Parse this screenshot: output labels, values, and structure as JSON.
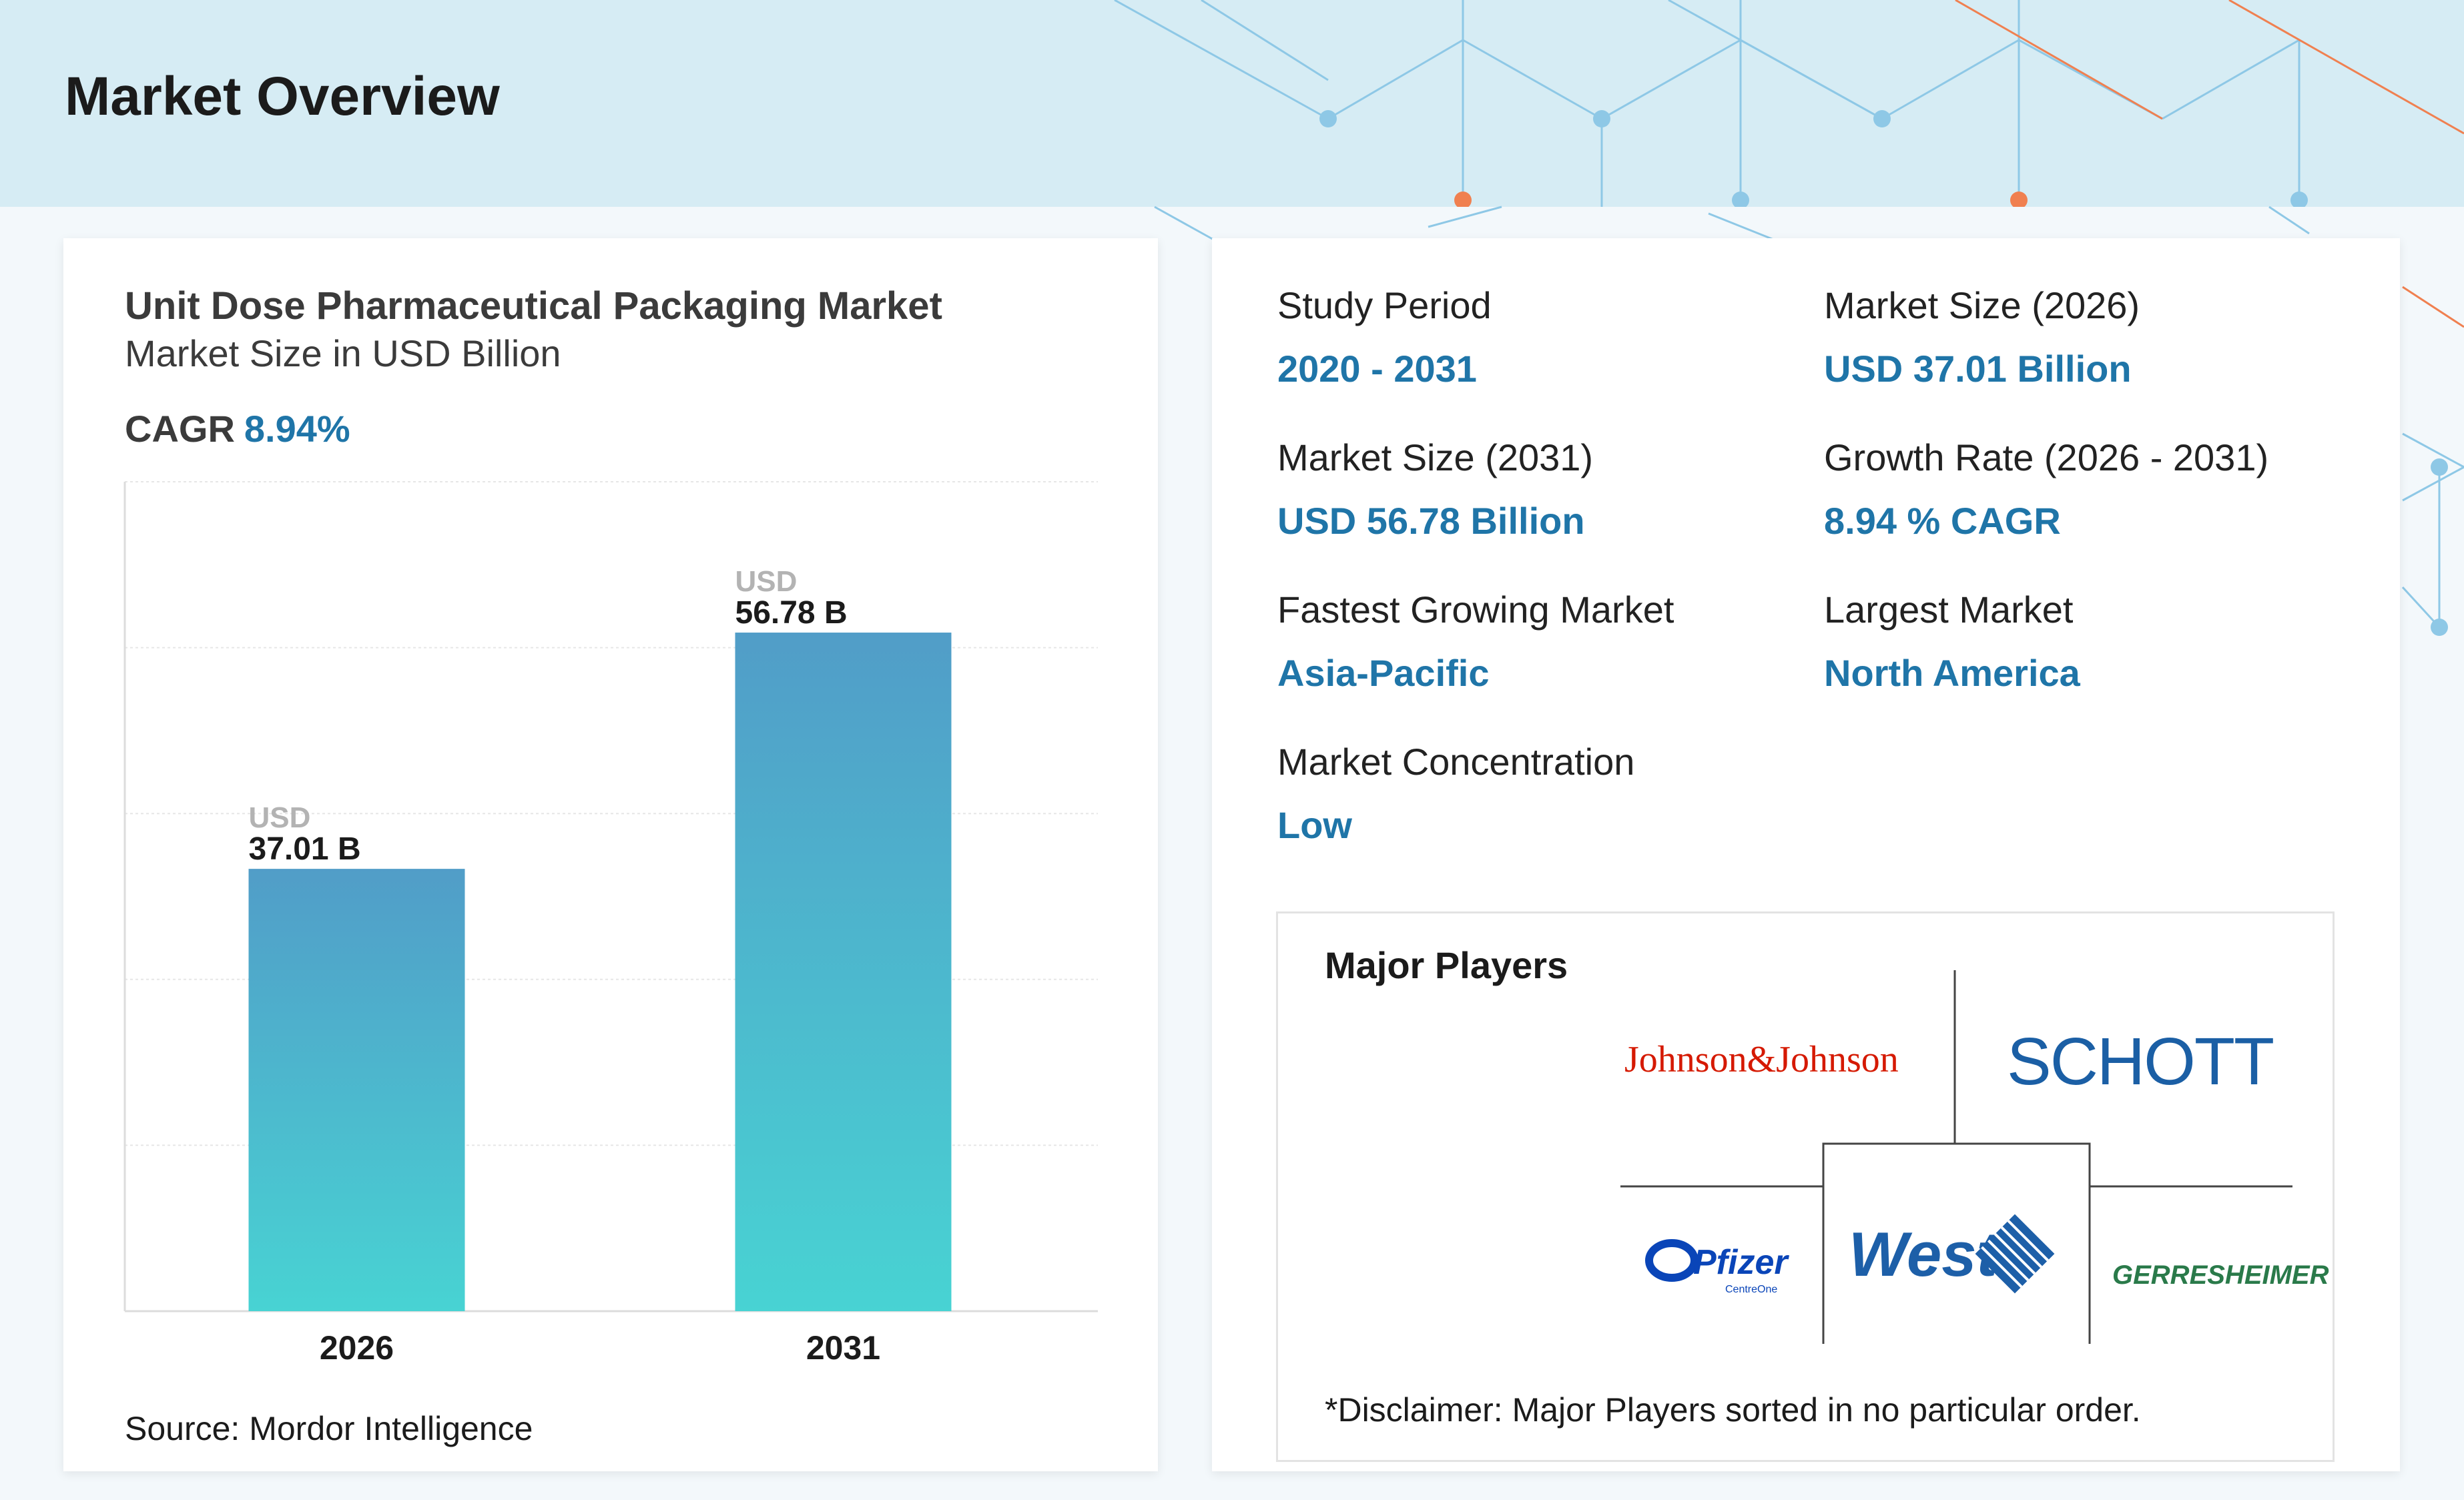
{
  "header": {
    "title": "Market Overview"
  },
  "colors": {
    "accent": "#1f75a8",
    "header_bg": "#d6ecf4",
    "bar_top": "#519dc8",
    "bar_bottom": "#48d3d3",
    "net_blue": "#8ec8e6",
    "net_orange": "#f08050"
  },
  "chart_card": {
    "title": "Unit Dose Pharmaceutical Packaging Market",
    "subtitle": "Market Size in USD Billion",
    "cagr_label": "CAGR",
    "cagr_value": "8.94%",
    "source": "Source: Mordor Intelligence"
  },
  "chart_data": {
    "type": "bar",
    "categories": [
      "2026",
      "2031"
    ],
    "values": [
      37.01,
      56.78
    ],
    "value_prefix": "USD",
    "value_labels": [
      "37.01 B",
      "56.78 B"
    ],
    "unit": "USD Billion",
    "ylim": [
      0,
      69.4
    ],
    "grid": true
  },
  "stats": [
    {
      "label": "Study Period",
      "value": "2020 - 2031"
    },
    {
      "label": "Market Size (2026)",
      "value": "USD 37.01 Billion"
    },
    {
      "label": "Market Size (2031)",
      "value": "USD 56.78 Billion"
    },
    {
      "label": "Growth Rate (2026 - 2031)",
      "value": "8.94 % CAGR"
    },
    {
      "label": "Fastest Growing Market",
      "value": "Asia-Pacific"
    },
    {
      "label": "Largest Market",
      "value": "North America"
    },
    {
      "label": "Market Concentration",
      "value": "Low"
    }
  ],
  "players": {
    "title": "Major Players",
    "logos": [
      "Johnson&Johnson",
      "SCHOTT",
      "Pfizer",
      "CentreOne",
      "West",
      "GERRESHEIMER"
    ],
    "disclaimer": "*Disclaimer: Major Players sorted in no particular order."
  }
}
